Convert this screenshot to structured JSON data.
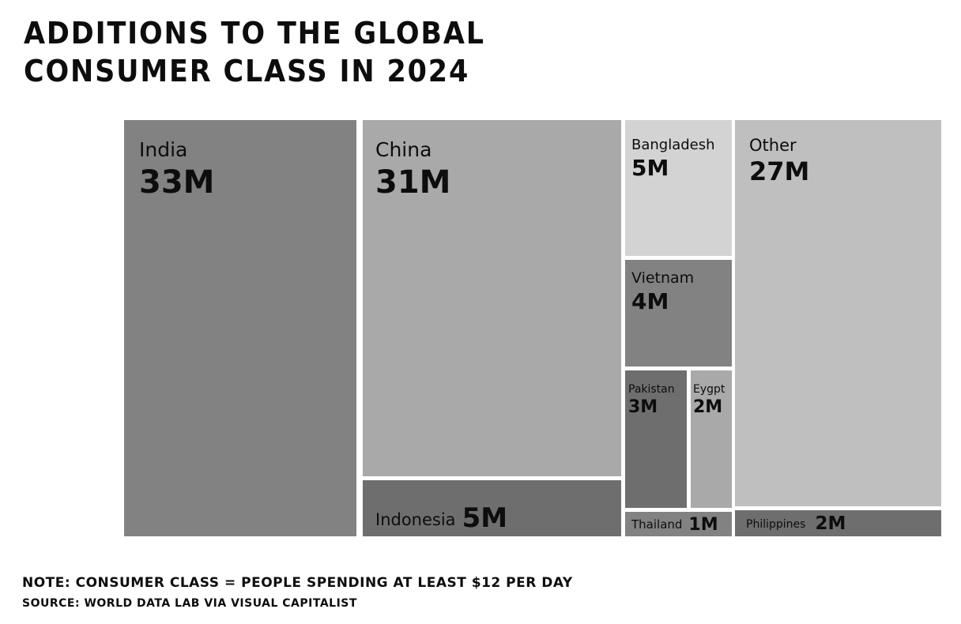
{
  "chart_data": {
    "type": "treemap",
    "title": "ADDITIONS TO THE GLOBAL CONSUMER CLASS IN 2024",
    "unit": "M",
    "items": [
      {
        "name": "India",
        "value": 33,
        "label": "33M",
        "color": "#828282"
      },
      {
        "name": "China",
        "value": 31,
        "label": "31M",
        "color": "#a9a9a9"
      },
      {
        "name": "Indonesia",
        "value": 5,
        "label": "5M",
        "color": "#6e6e6e"
      },
      {
        "name": "Bangladesh",
        "value": 5,
        "label": "5M",
        "color": "#d4d3d4"
      },
      {
        "name": "Vietnam",
        "value": 4,
        "label": "4M",
        "color": "#828282"
      },
      {
        "name": "Pakistan",
        "value": 3,
        "label": "3M",
        "color": "#6e6e6e"
      },
      {
        "name": "Eygpt",
        "value": 2,
        "label": "2M",
        "color": "#a9a9a9"
      },
      {
        "name": "Thailand",
        "value": 1,
        "label": "1M",
        "color": "#828282"
      },
      {
        "name": "Other",
        "value": 27,
        "label": "27M",
        "color": "#bfbfbf"
      },
      {
        "name": "Philippines",
        "value": 2,
        "label": "2M",
        "color": "#6e6e6e"
      }
    ]
  },
  "footnote": "NOTE: CONSUMER CLASS = PEOPLE SPENDING AT LEAST $12 PER DAY",
  "source": "SOURCE: WORLD DATA LAB VIA VISUAL CAPITALIST"
}
